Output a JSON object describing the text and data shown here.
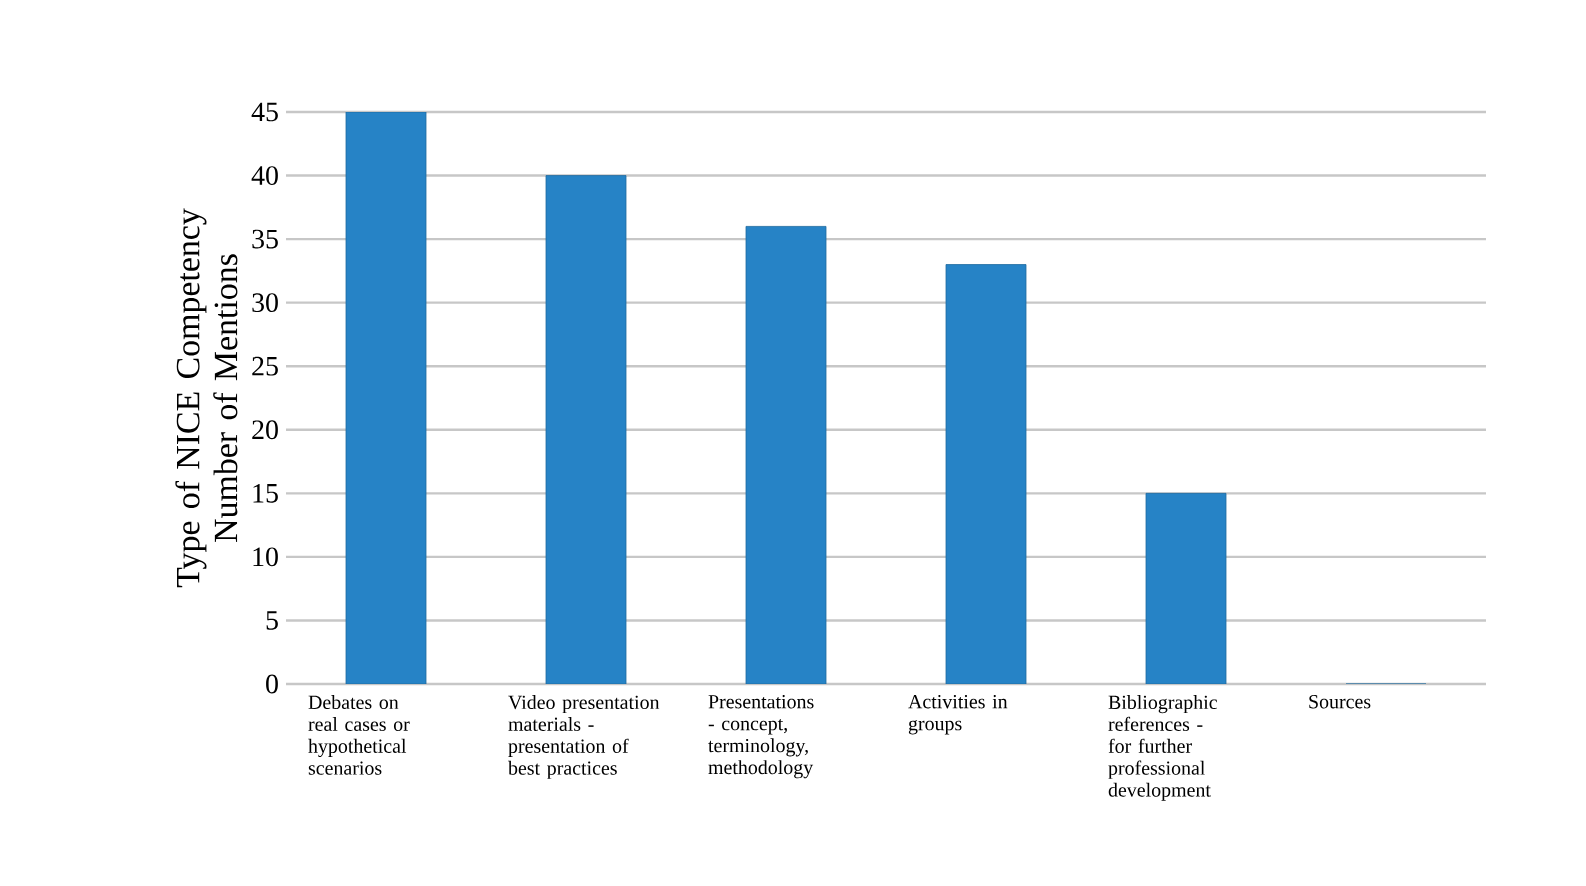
{
  "chart_data": {
    "type": "bar",
    "ylabel": "Type of NICE Competency Number of Mentions",
    "categories": [
      "Debates on real cases or hypothetical scenarios",
      "Video presentation materials - presentation of best practices",
      "Presentations - concept, terminology, methodology",
      "Activities in groups",
      "Bibliographic references - for further professional development",
      "Sources"
    ],
    "values": [
      45,
      40,
      36,
      33,
      15,
      0
    ],
    "color": "#2683c6",
    "ylim": [
      0,
      45
    ],
    "yticks": [
      0,
      5,
      10,
      15,
      20,
      25,
      30,
      35,
      40,
      45
    ],
    "grid": "y"
  }
}
